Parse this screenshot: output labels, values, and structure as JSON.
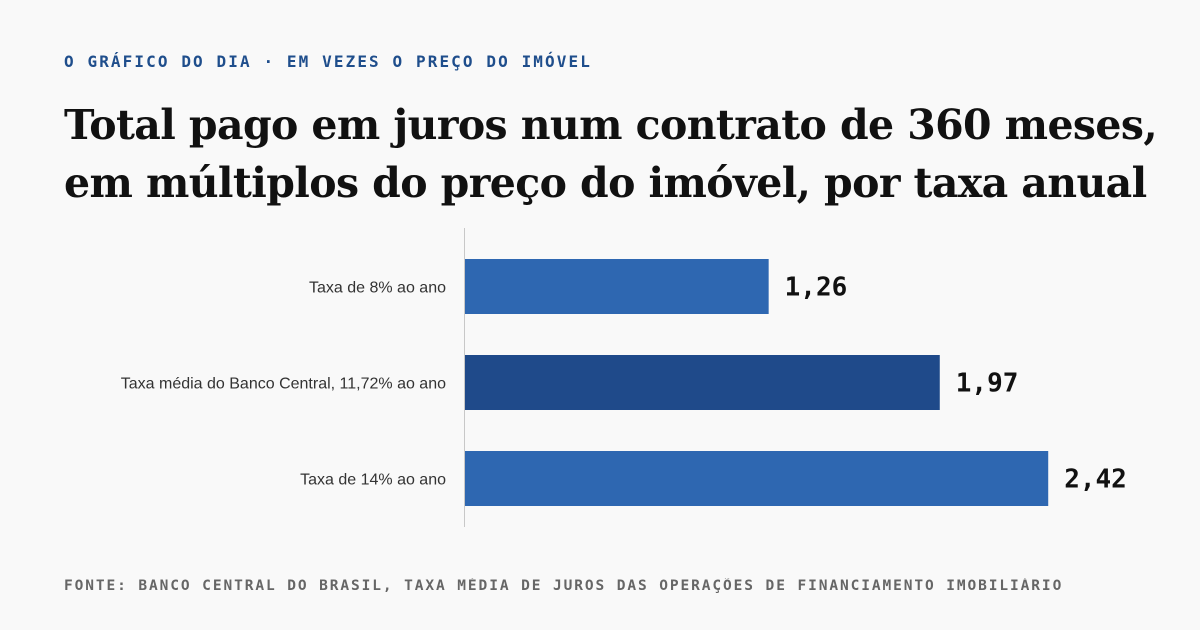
{
  "kicker": "O GRÁFICO DO DIA · EM VEZES O PREÇO DO IMÓVEL",
  "title": "Total pago em juros num contrato de 360 meses, em múltiplos do preço do imóvel, por taxa anual",
  "source": "FONTE: BANCO CENTRAL DO BRASIL, TAXA MÉDIA DE JUROS DAS OPERAÇÕES DE FINANCIAMENTO IMOBILIÁRIO",
  "colors": {
    "bar": "#2e67b1",
    "bar_highlight": "#1f4a8a",
    "axis": "#c8c8c8"
  },
  "chart_data": {
    "type": "bar",
    "orientation": "horizontal",
    "title": "Total pago em juros num contrato de 360 meses, em múltiplos do preço do imóvel, por taxa anual",
    "categories": [
      "Taxa de 8% ao ano",
      "Taxa média do Banco Central, 11,72% ao ano",
      "Taxa de 14% ao ano"
    ],
    "values": [
      1.26,
      1.97,
      2.42
    ],
    "value_labels": [
      "1,26",
      "1,97",
      "2,42"
    ],
    "highlight_index": 1,
    "xlim": [
      0,
      2.6
    ],
    "grid": false,
    "legend": "none"
  }
}
